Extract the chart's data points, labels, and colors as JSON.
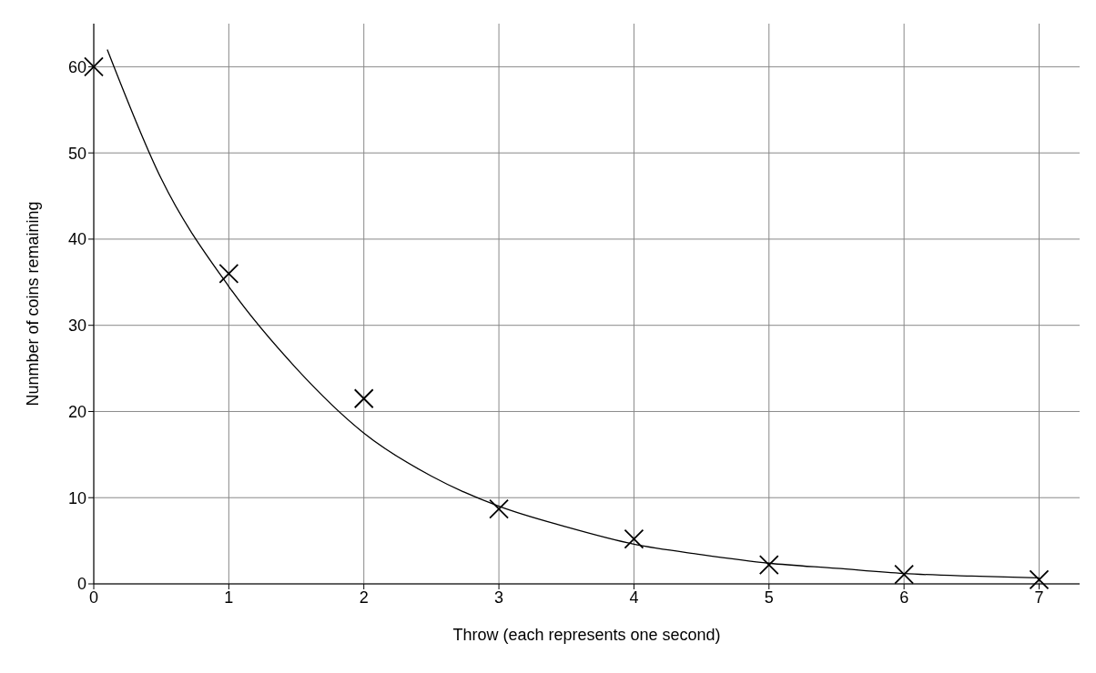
{
  "chart_data": {
    "type": "scatter",
    "xlabel": "Throw (each represents one second)",
    "ylabel": "Nunmber of coins remaining",
    "x": [
      0,
      1,
      2,
      3,
      4,
      5,
      6,
      7
    ],
    "series": [
      {
        "color": "#000000",
        "marker": "cross",
        "values": [
          60,
          36,
          21.5,
          8.7,
          5.2,
          2.2,
          1.1,
          0.5
        ]
      },
      {
        "type": "line",
        "color": "#000000",
        "marker": "none",
        "line_style": "solid",
        "x": [
          0.1,
          0.5,
          1,
          1.5,
          2,
          2.5,
          3,
          3.5,
          4,
          4.5,
          5,
          5.5,
          6,
          6.5,
          7
        ],
        "values": [
          62,
          47,
          34.5,
          25,
          17.5,
          12.5,
          9,
          6.6,
          4.6,
          3.4,
          2.4,
          1.8,
          1.2,
          0.9,
          0.7
        ]
      }
    ],
    "xlim": [
      0,
      7.3
    ],
    "xticks": [
      0,
      1,
      2,
      3,
      4,
      5,
      6,
      7
    ],
    "ylim": [
      0,
      65
    ],
    "yticks": [
      0,
      10,
      20,
      30,
      40,
      50,
      60
    ],
    "grid": true
  }
}
